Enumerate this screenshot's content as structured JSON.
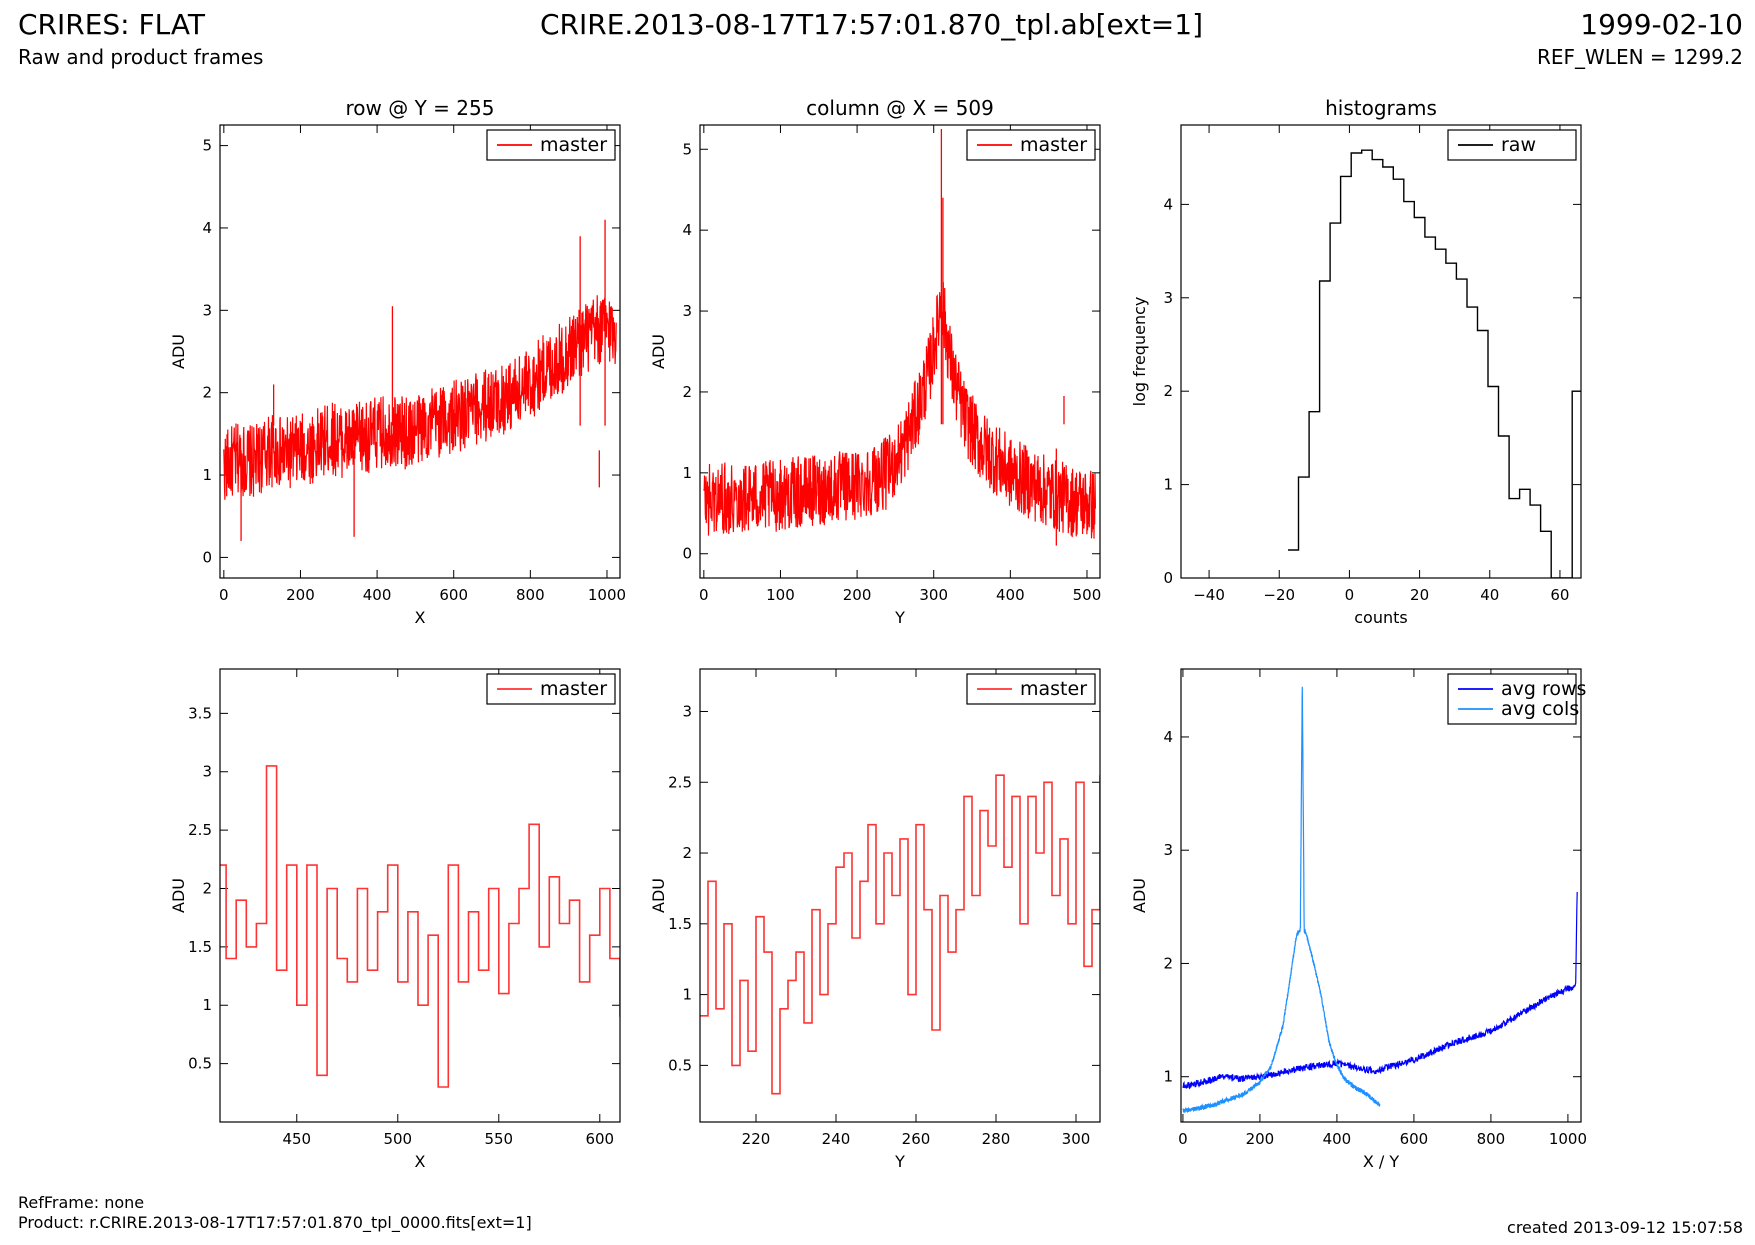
{
  "header": {
    "title": "CRIRES: FLAT",
    "subtitle": "Raw and product frames",
    "file": "CRIRE.2013-08-17T17:57:01.870_tpl.ab[ext=1]",
    "date": "1999-02-10",
    "ref_wlen": "REF_WLEN = 1299.2"
  },
  "footer": {
    "refframe": "RefFrame: none",
    "product": "Product: r.CRIRE.2013-08-17T17:57:01.870_tpl_0000.fits[ext=1]",
    "created": "created 2013-09-12 15:07:58"
  },
  "colors": {
    "red": "#ff0000",
    "blue": "#0000ff",
    "lightblue": "#1e90ff",
    "black": "#000000"
  },
  "chart_data": [
    {
      "id": "row",
      "type": "line",
      "title": "row @ Y = 255",
      "xlabel": "X",
      "ylabel": "ADU",
      "xlim": [
        -10,
        1034
      ],
      "ylim": [
        -0.25,
        5.25
      ],
      "xticks": [
        0,
        200,
        400,
        600,
        800,
        1000
      ],
      "yticks": [
        0,
        1,
        2,
        3,
        4,
        5
      ],
      "series": [
        {
          "name": "master",
          "color": "#ff0000",
          "x": [
            0,
            40,
            80,
            120,
            160,
            200,
            240,
            280,
            320,
            360,
            400,
            440,
            480,
            520,
            560,
            600,
            640,
            680,
            720,
            760,
            800,
            840,
            880,
            920,
            960,
            1000,
            1024
          ],
          "y": [
            1.1,
            1.2,
            1.15,
            1.3,
            1.25,
            1.3,
            1.35,
            1.45,
            1.4,
            1.45,
            1.5,
            1.55,
            1.5,
            1.6,
            1.65,
            1.7,
            1.75,
            1.85,
            1.9,
            2.0,
            2.1,
            2.3,
            2.4,
            2.6,
            2.7,
            2.8,
            2.75
          ],
          "peaks": [
            [
              45,
              0.2
            ],
            [
              130,
              2.1
            ],
            [
              340,
              0.25
            ],
            [
              440,
              3.05
            ],
            [
              930,
              3.9
            ],
            [
              980,
              0.85
            ],
            [
              995,
              4.1
            ]
          ]
        }
      ],
      "legend": "top-right"
    },
    {
      "id": "col",
      "type": "line",
      "title": "column @ X = 509",
      "xlabel": "Y",
      "ylabel": "ADU",
      "xlim": [
        -5,
        517
      ],
      "ylim": [
        -0.3,
        5.3
      ],
      "xticks": [
        0,
        100,
        200,
        300,
        400,
        500
      ],
      "yticks": [
        0,
        1,
        2,
        3,
        4,
        5
      ],
      "series": [
        {
          "name": "master",
          "color": "#ff0000",
          "x": [
            0,
            40,
            80,
            120,
            160,
            200,
            240,
            260,
            280,
            295,
            305,
            310,
            315,
            325,
            340,
            360,
            400,
            440,
            480,
            511
          ],
          "y": [
            0.65,
            0.7,
            0.7,
            0.75,
            0.8,
            0.85,
            1.0,
            1.3,
            1.8,
            2.3,
            2.8,
            3.2,
            2.8,
            2.2,
            1.7,
            1.35,
            1.0,
            0.8,
            0.65,
            0.6
          ],
          "peaks": [
            [
              310,
              5.25
            ],
            [
              312,
              4.4
            ],
            [
              470,
              1.95
            ],
            [
              505,
              1.6
            ],
            [
              460,
              0.1
            ]
          ]
        }
      ],
      "legend": "top-right"
    },
    {
      "id": "hist",
      "type": "bar",
      "title": "histograms",
      "xlabel": "counts",
      "ylabel": "log frequency",
      "xlim": [
        -48,
        66
      ],
      "ylim": [
        0,
        4.85
      ],
      "xticks": [
        -40,
        -20,
        0,
        20,
        40,
        60
      ],
      "yticks": [
        0,
        1,
        2,
        3,
        4
      ],
      "series": [
        {
          "name": "raw",
          "color": "#000000",
          "bin_width": 3,
          "x": [
            -16,
            -13,
            -10,
            -7,
            -4,
            -1,
            2,
            5,
            8,
            11,
            14,
            17,
            20,
            23,
            26,
            29,
            32,
            35,
            38,
            41,
            44,
            47,
            50,
            53,
            56,
            59,
            62,
            65
          ],
          "y": [
            0.3,
            1.08,
            1.78,
            3.18,
            3.8,
            4.3,
            4.55,
            4.58,
            4.48,
            4.4,
            4.27,
            4.03,
            3.86,
            3.65,
            3.52,
            3.37,
            3.2,
            2.9,
            2.65,
            2.05,
            1.52,
            0.85,
            0.95,
            0.78,
            0.5,
            0,
            0,
            2.0
          ]
        }
      ],
      "legend": "top-right"
    },
    {
      "id": "row-zoom",
      "type": "line",
      "xlabel": "X",
      "ylabel": "ADU",
      "xlim": [
        412,
        610
      ],
      "ylim": [
        0,
        3.88
      ],
      "xticks": [
        450,
        500,
        550,
        600
      ],
      "yticks": [
        0.5,
        1.0,
        1.5,
        2.0,
        2.5,
        3.0,
        3.5
      ],
      "series": [
        {
          "name": "master",
          "color": "#ff3333",
          "x": [
            412,
            415,
            420,
            425,
            430,
            435,
            440,
            445,
            450,
            455,
            460,
            465,
            470,
            475,
            480,
            485,
            490,
            495,
            500,
            505,
            510,
            515,
            520,
            525,
            530,
            535,
            540,
            545,
            550,
            555,
            560,
            565,
            570,
            575,
            580,
            585,
            590,
            595,
            600,
            605,
            610
          ],
          "y": [
            2.2,
            1.4,
            1.9,
            1.5,
            1.7,
            3.05,
            1.3,
            2.2,
            1.0,
            2.2,
            0.4,
            2.0,
            1.4,
            1.2,
            2.0,
            1.3,
            1.8,
            2.2,
            1.2,
            1.8,
            1.0,
            1.6,
            0.3,
            2.2,
            1.2,
            1.8,
            1.3,
            2.0,
            1.1,
            1.7,
            2.0,
            2.55,
            1.5,
            2.1,
            1.7,
            1.9,
            1.2,
            1.6,
            2.0,
            1.4,
            0.9
          ]
        }
      ],
      "legend": "top-right"
    },
    {
      "id": "col-zoom",
      "type": "line",
      "xlabel": "Y",
      "ylabel": "ADU",
      "xlim": [
        206,
        306
      ],
      "ylim": [
        0.1,
        3.3
      ],
      "xticks": [
        220,
        240,
        260,
        280,
        300
      ],
      "yticks": [
        0.5,
        1.0,
        1.5,
        2.0,
        2.5,
        3.0
      ],
      "series": [
        {
          "name": "master",
          "color": "#ff3333",
          "x": [
            206,
            208,
            210,
            212,
            214,
            216,
            218,
            220,
            222,
            224,
            226,
            228,
            230,
            232,
            234,
            236,
            238,
            240,
            242,
            244,
            246,
            248,
            250,
            252,
            254,
            256,
            258,
            260,
            262,
            264,
            266,
            268,
            270,
            272,
            274,
            276,
            278,
            280,
            282,
            284,
            286,
            288,
            290,
            292,
            294,
            296,
            298,
            300,
            302,
            304,
            306
          ],
          "y": [
            0.85,
            1.8,
            0.9,
            1.5,
            0.5,
            1.1,
            0.6,
            1.55,
            1.3,
            0.3,
            0.9,
            1.1,
            1.3,
            0.8,
            1.6,
            1.0,
            1.5,
            1.9,
            2.0,
            1.4,
            1.8,
            2.2,
            1.5,
            2.0,
            1.7,
            2.1,
            1.0,
            2.2,
            1.6,
            0.75,
            1.7,
            1.3,
            1.6,
            2.4,
            1.7,
            2.3,
            2.05,
            2.55,
            1.9,
            2.4,
            1.5,
            2.4,
            2.0,
            2.5,
            1.7,
            2.1,
            1.5,
            2.5,
            1.2,
            1.6,
            2.55
          ]
        }
      ],
      "legend": "top-right"
    },
    {
      "id": "avg",
      "type": "line",
      "xlabel": "X / Y",
      "ylabel": "ADU",
      "xlim": [
        -5,
        1034
      ],
      "ylim": [
        0.6,
        4.6
      ],
      "xticks": [
        0,
        200,
        400,
        600,
        800,
        1000
      ],
      "yticks": [
        1,
        2,
        3,
        4
      ],
      "series": [
        {
          "name": "avg rows",
          "color": "#0000ff",
          "x": [
            0,
            50,
            100,
            150,
            200,
            250,
            300,
            350,
            400,
            450,
            500,
            550,
            600,
            650,
            700,
            750,
            800,
            850,
            900,
            950,
            1000,
            1020,
            1024
          ],
          "y": [
            0.92,
            0.95,
            1.0,
            0.98,
            1.0,
            1.03,
            1.07,
            1.1,
            1.12,
            1.08,
            1.05,
            1.1,
            1.15,
            1.22,
            1.3,
            1.35,
            1.4,
            1.5,
            1.6,
            1.7,
            1.78,
            1.8,
            2.65
          ]
        },
        {
          "name": "avg cols",
          "color": "#1e90ff",
          "x": [
            0,
            40,
            80,
            120,
            160,
            200,
            230,
            260,
            280,
            295,
            305,
            310,
            315,
            325,
            340,
            360,
            380,
            400,
            420,
            440,
            460,
            480,
            500,
            511
          ],
          "y": [
            0.7,
            0.72,
            0.75,
            0.8,
            0.85,
            0.95,
            1.1,
            1.45,
            1.9,
            2.25,
            2.3,
            4.5,
            2.3,
            2.2,
            2.0,
            1.7,
            1.3,
            1.1,
            0.98,
            0.92,
            0.88,
            0.84,
            0.78,
            0.75
          ]
        }
      ],
      "legend": "top-right"
    }
  ]
}
